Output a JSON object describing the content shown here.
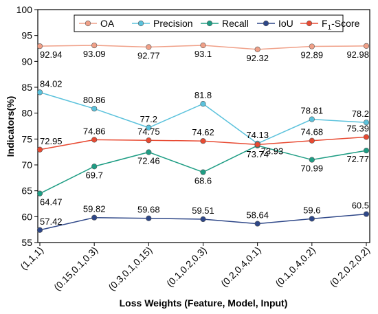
{
  "chart_data": {
    "type": "line",
    "title": "",
    "xlabel": "Loss Weights (Feature, Model, Input)",
    "ylabel": "Indicators(%)",
    "ylim": [
      55,
      100
    ],
    "yticks": [
      55,
      60,
      65,
      70,
      75,
      80,
      85,
      90,
      95,
      100
    ],
    "grid": false,
    "legend_position": "top",
    "categories": [
      "(1,1,1)",
      "(0.15,0.1,0.3)",
      "(0.3,0.1,0.15)",
      "(0.1,0.2,0.3)",
      "(0.2,0.4,0.1)",
      "(0.1,0.4,0.2)",
      "(0.2,0.2,0.2)"
    ],
    "series": [
      {
        "name": "OA",
        "color": "#f0a088",
        "values": [
          92.94,
          93.09,
          92.77,
          93.1,
          92.32,
          92.89,
          92.98
        ],
        "labels": [
          "92.94",
          "93.09",
          "92.77",
          "93.1",
          "92.32",
          "92.89",
          "92.98"
        ],
        "label_pos": [
          "below",
          "below",
          "below",
          "below",
          "below",
          "below",
          "below"
        ]
      },
      {
        "name": "Precision",
        "color": "#5bc2dc",
        "values": [
          84.02,
          80.86,
          77.2,
          81.8,
          74.13,
          78.81,
          78.2
        ],
        "labels": [
          "84.02",
          "80.86",
          "77.2",
          "81.8",
          "74.13",
          "78.81",
          "78.2"
        ],
        "label_pos": [
          "above",
          "above",
          "above",
          "above",
          "above",
          "above",
          "above"
        ]
      },
      {
        "name": "Recall",
        "color": "#1e9d84",
        "values": [
          64.47,
          69.7,
          72.46,
          68.6,
          73.74,
          70.99,
          72.77
        ],
        "labels": [
          "64.47",
          "69.7",
          "72.46",
          "68.6",
          "73.74",
          "70.99",
          "72.77"
        ],
        "label_pos": [
          "below",
          "below",
          "below",
          "below",
          "below",
          "below",
          "below"
        ]
      },
      {
        "name": "IoU",
        "color": "#2e4788",
        "values": [
          57.42,
          59.82,
          59.68,
          59.51,
          58.64,
          59.6,
          60.5
        ],
        "labels": [
          "57.42",
          "59.82",
          "59.68",
          "59.51",
          "58.64",
          "59.6",
          "60.5"
        ],
        "label_pos": [
          "above",
          "above",
          "above",
          "above",
          "above",
          "above",
          "above"
        ]
      },
      {
        "name": "F1-Score",
        "name_main": "F",
        "name_sub": "1",
        "name_rest": "-Score",
        "color": "#e84a32",
        "values": [
          72.95,
          74.86,
          74.75,
          74.62,
          73.93,
          74.68,
          75.39
        ],
        "labels": [
          "72.95",
          "74.86",
          "74.75",
          "74.62",
          "73.93",
          "74.68",
          "75.39"
        ],
        "label_pos": [
          "above",
          "above",
          "above",
          "above",
          "below-right",
          "above",
          "above"
        ]
      }
    ]
  }
}
